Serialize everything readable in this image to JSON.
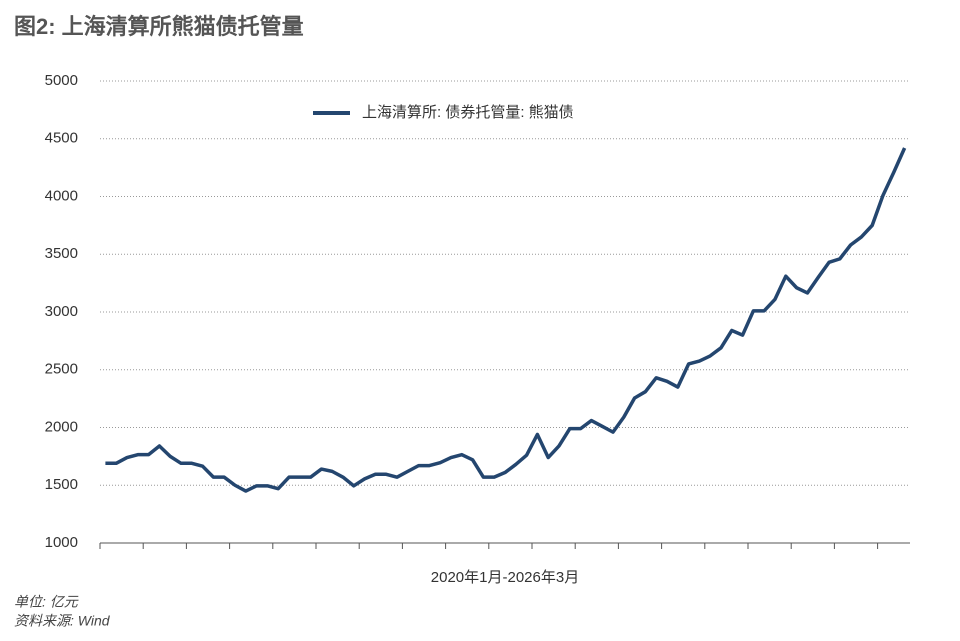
{
  "chart_data": {
    "type": "line",
    "title": "图2: 上海清算所熊猫债托管量",
    "x_label": "2020年1月-2026年3月",
    "notes": [
      "单位: 亿元",
      "资料来源: Wind"
    ],
    "categories": [
      null,
      null,
      null,
      null,
      null,
      null,
      null,
      null,
      null,
      null,
      null,
      null,
      null,
      null,
      null,
      null,
      null,
      null,
      null,
      null,
      null,
      null,
      null,
      null,
      null,
      null,
      null,
      null,
      null,
      null,
      null,
      null,
      null,
      null,
      null,
      null,
      null,
      null,
      null,
      null,
      null,
      null,
      null,
      null,
      null,
      null,
      null,
      null,
      null,
      null,
      null,
      null,
      null,
      null,
      null,
      null,
      null,
      null,
      null,
      null,
      null,
      null,
      null,
      null,
      null,
      null,
      null,
      null,
      null,
      null,
      null,
      null,
      null,
      null,
      null
    ],
    "series": [
      {
        "name": "上海清算所: 债券托管量: 熊猫债",
        "color": "#24466f",
        "values": [
          1690,
          1690,
          1740,
          1765,
          1765,
          1840,
          1750,
          1690,
          1690,
          1665,
          1570,
          1570,
          1500,
          1450,
          1495,
          1495,
          1470,
          1570,
          1570,
          1570,
          1640,
          1620,
          1570,
          1495,
          1555,
          1595,
          1595,
          1570,
          1620,
          1670,
          1670,
          1695,
          1740,
          1765,
          1720,
          1570,
          1570,
          1610,
          1680,
          1760,
          1940,
          1740,
          1840,
          1990,
          1990,
          2060,
          2010,
          1960,
          2090,
          2255,
          2310,
          2430,
          2400,
          2350,
          2550,
          2575,
          2620,
          2690,
          2840,
          2800,
          3010,
          3010,
          3110,
          3310,
          3210,
          3165,
          3300,
          3430,
          3460,
          3580,
          3650,
          3750,
          4010,
          4210,
          4420
        ]
      }
    ],
    "ylim": [
      1000,
      5000
    ],
    "yticks": [
      1000,
      1500,
      2000,
      2500,
      3000,
      3500,
      4000,
      4500,
      5000
    ],
    "grid": true,
    "legend": "top"
  }
}
